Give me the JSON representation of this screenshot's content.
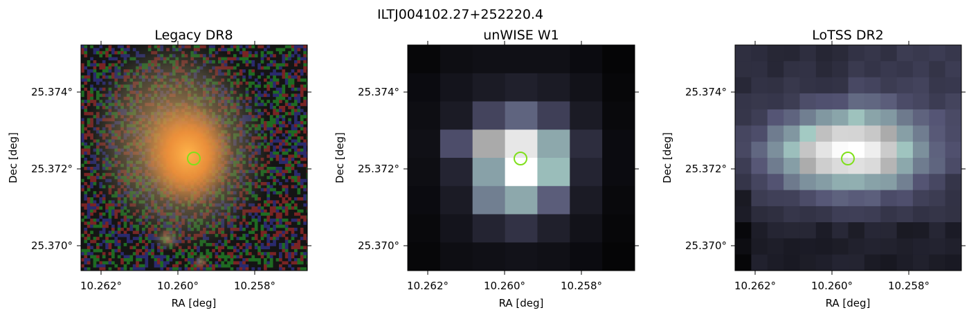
{
  "figure_title": "ILTJ004102.27+252220.4",
  "panels": [
    {
      "title": "Legacy DR8",
      "xlabel": "RA [deg]",
      "ylabel": "Dec [deg]",
      "xticks": [
        "10.262°",
        "10.260°",
        "10.258°"
      ],
      "yticks": [
        "25.374°",
        "25.372°",
        "25.370°"
      ],
      "image": "optical color galaxy cutout",
      "colors": {
        "core": "#f29a3a",
        "halo": "#9a8a66",
        "noise": [
          "#1f6b22",
          "#7a2424",
          "#2a2a6e"
        ]
      }
    },
    {
      "title": "unWISE W1",
      "xlabel": "RA [deg]",
      "ylabel": "Dec [deg]",
      "xticks": [
        "10.262°",
        "10.260°",
        "10.258°"
      ],
      "yticks": [
        "25.374°",
        "25.372°",
        "25.370°"
      ],
      "image": "infrared pixelated cutout",
      "colormap": "bone"
    },
    {
      "title": "LoTSS DR2",
      "xlabel": "RA [deg]",
      "ylabel": "Dec [deg]",
      "xticks": [
        "10.262°",
        "10.260°",
        "10.258°"
      ],
      "yticks": [
        "25.374°",
        "25.372°",
        "25.370°"
      ],
      "image": "radio pixelated cutout",
      "colormap": "bone"
    }
  ],
  "marker": {
    "shape": "circle",
    "color": "#7fe01a"
  }
}
